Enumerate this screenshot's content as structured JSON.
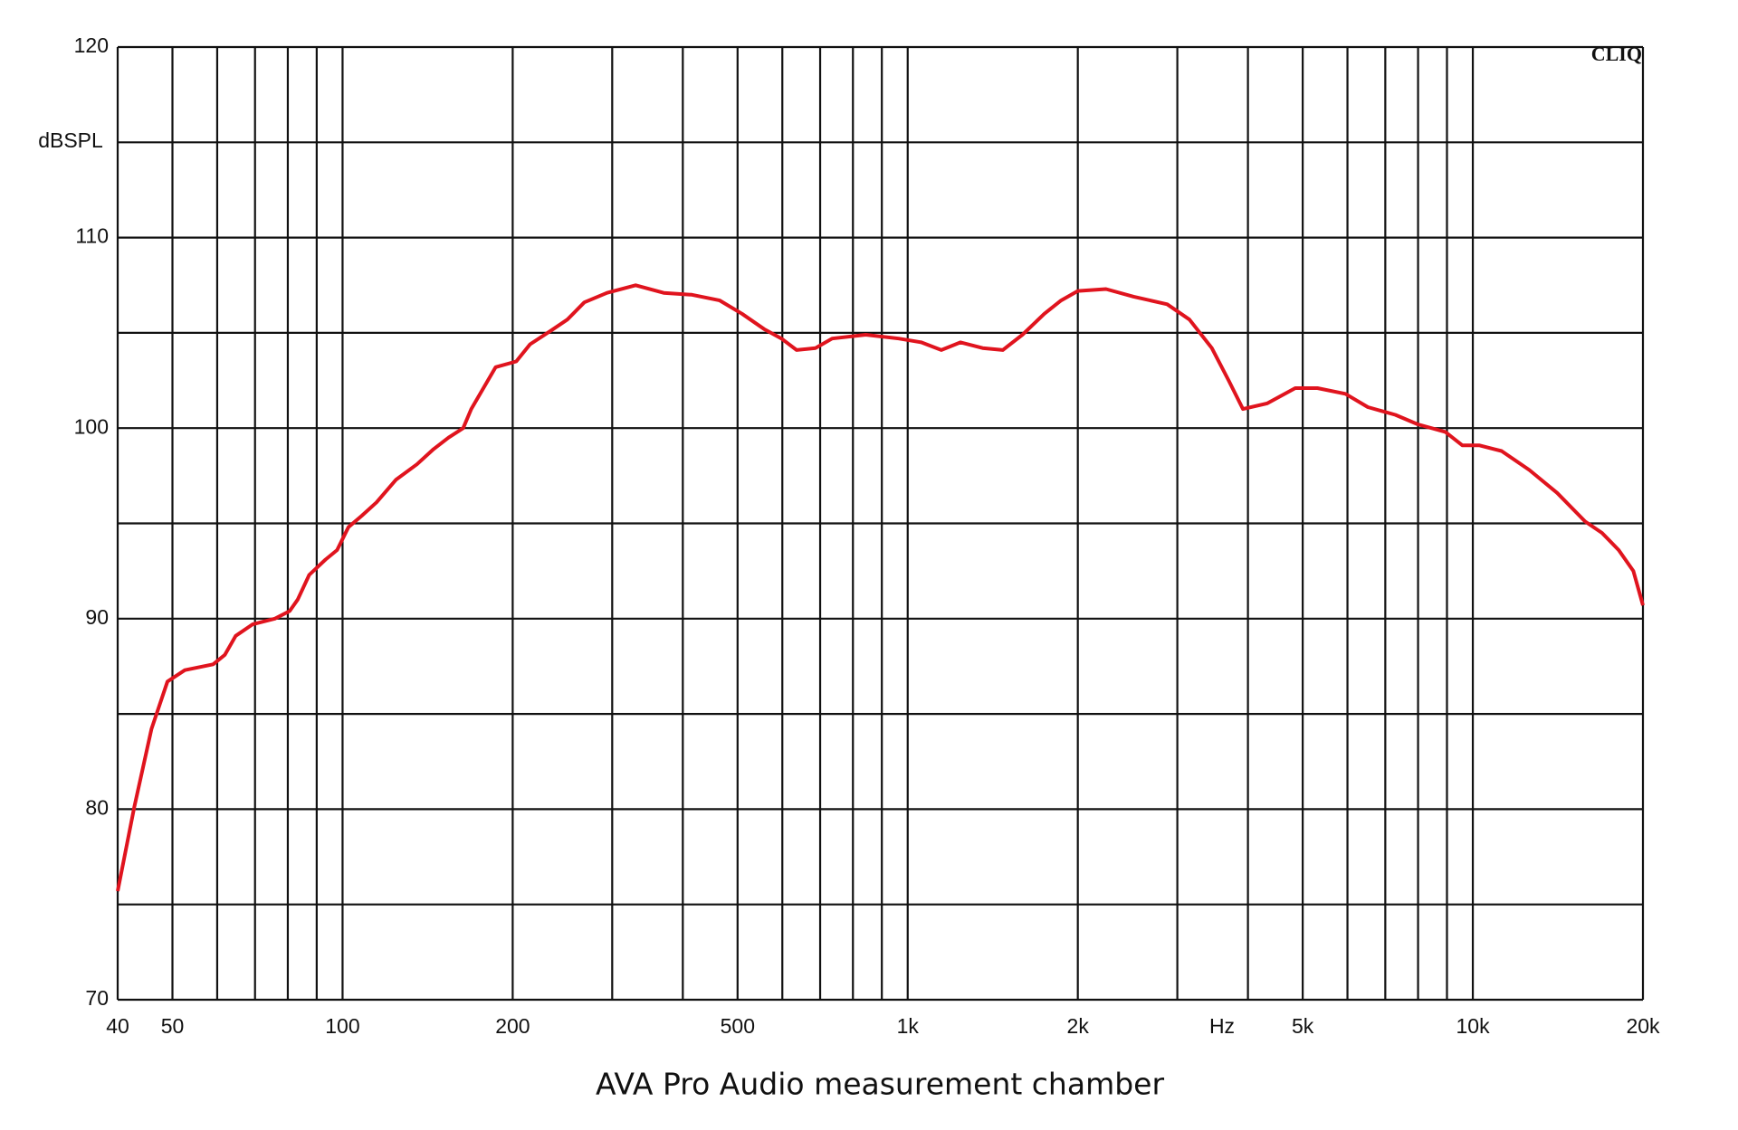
{
  "chart_data": {
    "type": "line",
    "title": "AVA Pro Audio measurement chamber",
    "ylabel": "dBSPL",
    "xlabel": "Hz",
    "annotation": "CLIQ",
    "xscale": "log",
    "grid": true,
    "xlim": [
      40,
      20000
    ],
    "ylim": [
      70,
      120
    ],
    "yticks": [
      70,
      80,
      90,
      100,
      110,
      120
    ],
    "yminor": [
      75,
      85,
      95,
      105,
      115
    ],
    "xticks": [
      40,
      50,
      100,
      200,
      500,
      {
        "value": 1000,
        "label": "1k"
      },
      {
        "value": 2000,
        "label": "2k"
      },
      {
        "value": 5000,
        "label": "5k"
      },
      {
        "value": 10000,
        "label": "10k"
      },
      {
        "value": 20000,
        "label": "20k"
      }
    ],
    "xminor": [
      60,
      70,
      80,
      90,
      300,
      400,
      600,
      700,
      800,
      900,
      3000,
      4000,
      6000,
      7000,
      8000,
      9000
    ],
    "series": [
      {
        "color": "#e0141e",
        "x": [
          40,
          42.8,
          45.9,
          49,
          52.6,
          59,
          61.9,
          64.7,
          69.3,
          75.9,
          80.6,
          83.3,
          87.3,
          93.3,
          97.8,
          102.4,
          108.1,
          114.8,
          124.4,
          135.4,
          144.9,
          154,
          163.5,
          168.9,
          180.8,
          186.6,
          202.9,
          214.7,
          233.3,
          249.9,
          267.8,
          293.8,
          330,
          370,
          415,
          465,
          509,
          557,
          598,
          636,
          687,
          735,
          843,
          964,
          1057,
          1147,
          1240,
          1357,
          1473,
          1596,
          1745,
          1868,
          2000,
          2243,
          2511,
          2878,
          3152,
          3452,
          3698,
          3920,
          4330,
          4850,
          5310,
          5950,
          6520,
          7290,
          7990,
          8940,
          9580,
          10260,
          11240,
          12590,
          14100,
          15800,
          16920,
          18120,
          19230,
          20000
        ],
        "values": [
          75.7,
          80.1,
          84.2,
          86.7,
          87.3,
          87.6,
          88.1,
          89.1,
          89.7,
          90.0,
          90.4,
          91.0,
          92.3,
          93.1,
          93.6,
          94.8,
          95.4,
          96.1,
          97.3,
          98.1,
          98.9,
          99.5,
          100.0,
          101.0,
          102.5,
          103.2,
          103.5,
          104.4,
          105.1,
          105.7,
          106.6,
          107.1,
          107.5,
          107.1,
          107.0,
          106.7,
          106.0,
          105.2,
          104.7,
          104.1,
          104.2,
          104.7,
          104.9,
          104.7,
          104.5,
          104.1,
          104.5,
          104.2,
          104.1,
          104.9,
          106.0,
          106.7,
          107.2,
          107.3,
          106.9,
          106.5,
          105.7,
          104.2,
          102.5,
          101.0,
          101.3,
          102.1,
          102.1,
          101.8,
          101.1,
          100.7,
          100.2,
          99.8,
          99.1,
          99.1,
          98.8,
          97.8,
          96.6,
          95.1,
          94.5,
          93.6,
          92.5,
          90.7
        ]
      }
    ]
  }
}
